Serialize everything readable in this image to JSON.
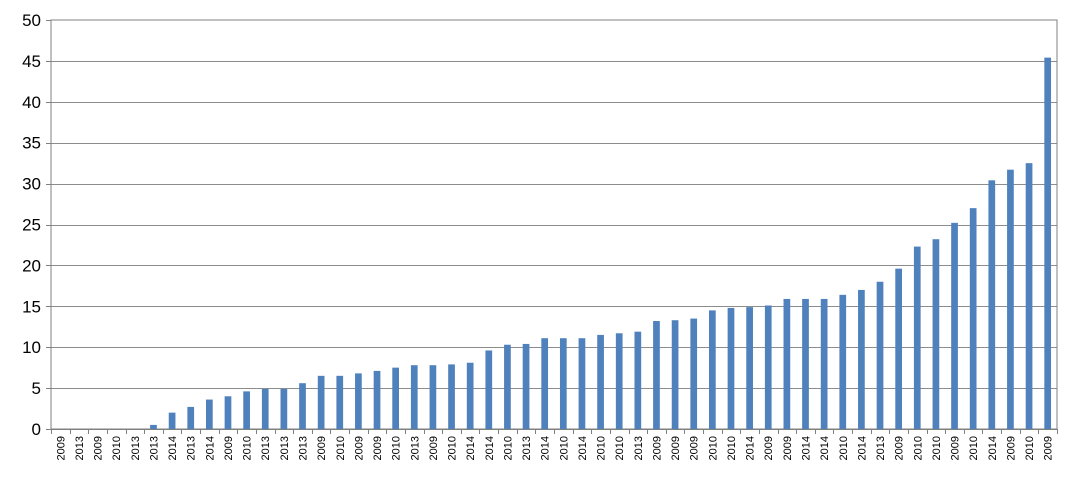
{
  "chart_data": {
    "type": "bar",
    "title": "",
    "xlabel": "",
    "ylabel": "",
    "ylim": [
      0,
      50
    ],
    "yticks": [
      0,
      5,
      10,
      15,
      20,
      25,
      30,
      35,
      40,
      45,
      50
    ],
    "grid": true,
    "bar_color": "#4f81bd",
    "categories": [
      "2009",
      "2013",
      "2009",
      "2010",
      "2013",
      "2013",
      "2014",
      "2013",
      "2014",
      "2009",
      "2010",
      "2013",
      "2013",
      "2013",
      "2009",
      "2010",
      "2009",
      "2009",
      "2010",
      "2013",
      "2009",
      "2010",
      "2014",
      "2014",
      "2010",
      "2013",
      "2014",
      "2010",
      "2014",
      "2010",
      "2010",
      "2013",
      "2009",
      "2009",
      "2009",
      "2010",
      "2010",
      "2014",
      "2009",
      "2009",
      "2014",
      "2014",
      "2010",
      "2014",
      "2013",
      "2009",
      "2010",
      "2010",
      "2009",
      "2010",
      "2014",
      "2009",
      "2010",
      "2009"
    ],
    "values": [
      0,
      0,
      0,
      0,
      0,
      0.5,
      2.0,
      2.7,
      3.6,
      4.0,
      4.6,
      4.9,
      4.9,
      5.6,
      6.5,
      6.5,
      6.8,
      7.1,
      7.5,
      7.8,
      7.8,
      7.9,
      8.1,
      9.6,
      10.3,
      10.4,
      11.1,
      11.1,
      11.1,
      11.5,
      11.7,
      11.9,
      13.2,
      13.3,
      13.5,
      14.5,
      14.8,
      14.9,
      15.1,
      15.9,
      15.9,
      15.9,
      16.4,
      17.0,
      18.0,
      19.6,
      22.3,
      23.2,
      25.2,
      27.0,
      30.4,
      31.7,
      32.5,
      45.4
    ]
  }
}
